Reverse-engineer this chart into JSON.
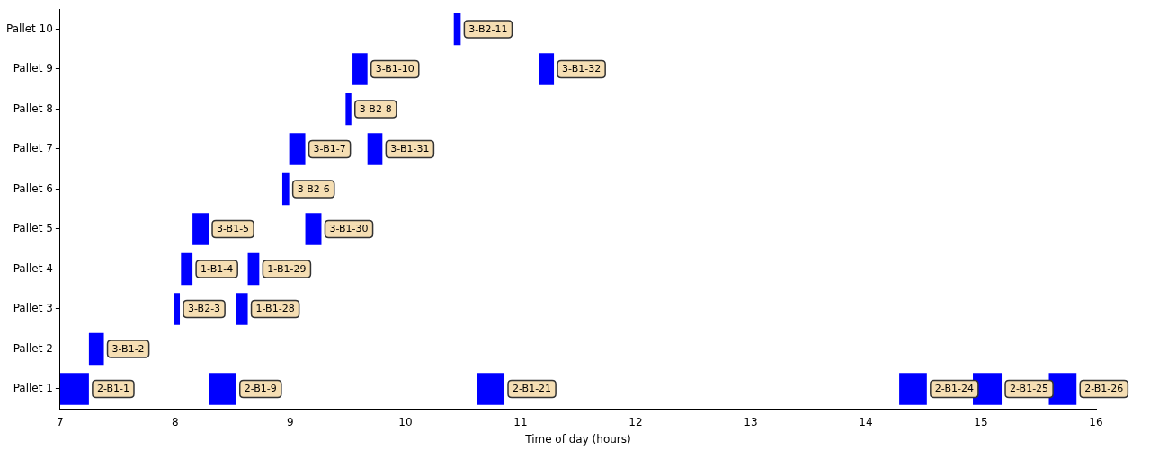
{
  "chart_data": {
    "type": "bar",
    "orientation": "horizontal",
    "xlabel": "Time of day (hours)",
    "categories": [
      "Pallet 10",
      "Pallet 9",
      "Pallet 8",
      "Pallet 7",
      "Pallet 6",
      "Pallet 5",
      "Pallet 4",
      "Pallet 3",
      "Pallet 2",
      "Pallet 1"
    ],
    "xlim": [
      7,
      16
    ],
    "xticks": [
      7,
      8,
      9,
      10,
      11,
      12,
      13,
      14,
      15,
      16
    ],
    "grid": false,
    "legend": false,
    "series": [
      {
        "color": "#0000ff",
        "base": [
          10.42,
          9.54,
          9.48,
          8.99,
          8.93,
          8.15,
          8.05,
          7.99,
          7.25,
          7.0
        ],
        "values": [
          0.06,
          0.13,
          0.05,
          0.14,
          0.06,
          0.14,
          0.1,
          0.05,
          0.13,
          0.25
        ],
        "value_labels": [
          "3-B2-11",
          "3-B1-10",
          "3-B2-8",
          "3-B1-7",
          "3-B2-6",
          "3-B1-5",
          "1-B1-4",
          "3-B2-3",
          "3-B1-2",
          "2-B1-1"
        ]
      },
      {
        "color": "#0000ff",
        "base": [
          null,
          11.16,
          null,
          9.67,
          null,
          9.13,
          8.63,
          8.53,
          null,
          8.29
        ],
        "values": [
          null,
          0.13,
          null,
          0.13,
          null,
          0.14,
          0.1,
          0.1,
          null,
          0.24
        ],
        "value_labels": [
          null,
          "3-B1-32",
          null,
          "3-B1-31",
          null,
          "3-B1-30",
          "1-B1-29",
          "1-B1-28",
          null,
          "2-B1-9"
        ]
      },
      {
        "color": "#0000ff",
        "base": [
          null,
          null,
          null,
          null,
          null,
          null,
          null,
          null,
          null,
          10.62
        ],
        "values": [
          null,
          null,
          null,
          null,
          null,
          null,
          null,
          null,
          null,
          0.24
        ],
        "value_labels": [
          null,
          null,
          null,
          null,
          null,
          null,
          null,
          null,
          null,
          "2-B1-21"
        ]
      },
      {
        "color": "#0000ff",
        "base": [
          null,
          null,
          null,
          null,
          null,
          null,
          null,
          null,
          null,
          14.29
        ],
        "values": [
          null,
          null,
          null,
          null,
          null,
          null,
          null,
          null,
          null,
          0.24
        ],
        "value_labels": [
          null,
          null,
          null,
          null,
          null,
          null,
          null,
          null,
          null,
          "2-B1-24"
        ]
      },
      {
        "color": "#0000ff",
        "base": [
          null,
          null,
          null,
          null,
          null,
          null,
          null,
          null,
          null,
          14.93
        ],
        "values": [
          null,
          null,
          null,
          null,
          null,
          null,
          null,
          null,
          null,
          0.25
        ],
        "value_labels": [
          null,
          null,
          null,
          null,
          null,
          null,
          null,
          null,
          null,
          "2-B1-25"
        ]
      },
      {
        "color": "#0000ff",
        "base": [
          null,
          null,
          null,
          null,
          null,
          null,
          null,
          null,
          null,
          15.59
        ],
        "values": [
          null,
          null,
          null,
          null,
          null,
          null,
          null,
          null,
          null,
          0.24
        ],
        "value_labels": [
          null,
          null,
          null,
          null,
          null,
          null,
          null,
          null,
          null,
          "2-B1-26"
        ]
      }
    ]
  }
}
